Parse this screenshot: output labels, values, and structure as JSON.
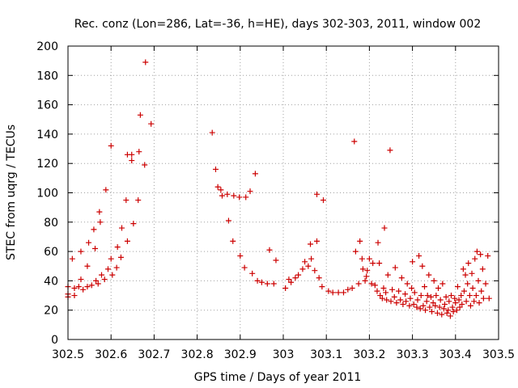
{
  "chart_data": {
    "type": "scatter",
    "title": "Rec. conz (Lon=286, Lat=-36, h=HE), days 302-303, 2011, window 002",
    "xlabel": "GPS time / Days of year 2011",
    "ylabel": "STEC from uqrg / TECUs",
    "xlim": [
      302.5,
      303.5
    ],
    "ylim": [
      0,
      200
    ],
    "xticks": [
      302.5,
      302.6,
      302.7,
      302.8,
      302.9,
      303.0,
      303.1,
      303.2,
      303.3,
      303.4,
      303.5
    ],
    "xtick_labels": [
      "302.5",
      "302.6",
      "302.7",
      "302.8",
      "302.9",
      "303",
      "303.1",
      "303.2",
      "303.3",
      "303.4",
      "303.5"
    ],
    "yticks": [
      0,
      20,
      40,
      60,
      80,
      100,
      120,
      140,
      160,
      180,
      200
    ],
    "ytick_labels": [
      "0",
      "20",
      "40",
      "60",
      "80",
      "100",
      "120",
      "140",
      "160",
      "180",
      "200"
    ],
    "grid": true,
    "marker": "plus",
    "color": "#cc0000",
    "points": [
      [
        302.5,
        29
      ],
      [
        302.5,
        31
      ],
      [
        302.5,
        36
      ],
      [
        302.51,
        55
      ],
      [
        302.515,
        30
      ],
      [
        302.515,
        35
      ],
      [
        302.525,
        36
      ],
      [
        302.53,
        41
      ],
      [
        302.53,
        60
      ],
      [
        302.535,
        34
      ],
      [
        302.545,
        36
      ],
      [
        302.545,
        50
      ],
      [
        302.548,
        66
      ],
      [
        302.555,
        37
      ],
      [
        302.56,
        75
      ],
      [
        302.563,
        62
      ],
      [
        302.565,
        40
      ],
      [
        302.57,
        38
      ],
      [
        302.573,
        87
      ],
      [
        302.575,
        80
      ],
      [
        302.578,
        44
      ],
      [
        302.585,
        41
      ],
      [
        302.588,
        102
      ],
      [
        302.593,
        48
      ],
      [
        302.6,
        55
      ],
      [
        302.6,
        132
      ],
      [
        302.603,
        44
      ],
      [
        302.613,
        49
      ],
      [
        302.615,
        63
      ],
      [
        302.623,
        56
      ],
      [
        302.625,
        76
      ],
      [
        302.635,
        95
      ],
      [
        302.638,
        67
      ],
      [
        302.638,
        126
      ],
      [
        302.648,
        126
      ],
      [
        302.648,
        122
      ],
      [
        302.652,
        79
      ],
      [
        302.663,
        95
      ],
      [
        302.665,
        128
      ],
      [
        302.668,
        153
      ],
      [
        302.678,
        119
      ],
      [
        302.68,
        189
      ],
      [
        302.693,
        147
      ],
      [
        302.835,
        141
      ],
      [
        302.843,
        116
      ],
      [
        302.848,
        104
      ],
      [
        302.855,
        102
      ],
      [
        302.858,
        98
      ],
      [
        302.87,
        99
      ],
      [
        302.873,
        81
      ],
      [
        302.883,
        67
      ],
      [
        302.885,
        98
      ],
      [
        302.898,
        97
      ],
      [
        302.9,
        57
      ],
      [
        302.91,
        49
      ],
      [
        302.913,
        97
      ],
      [
        302.923,
        101
      ],
      [
        302.928,
        45
      ],
      [
        302.935,
        113
      ],
      [
        302.94,
        40
      ],
      [
        302.95,
        39
      ],
      [
        302.963,
        38
      ],
      [
        302.968,
        61
      ],
      [
        302.978,
        38
      ],
      [
        302.983,
        54
      ],
      [
        303.005,
        35
      ],
      [
        303.013,
        41
      ],
      [
        303.018,
        39
      ],
      [
        303.028,
        42
      ],
      [
        303.035,
        44
      ],
      [
        303.045,
        48
      ],
      [
        303.05,
        53
      ],
      [
        303.058,
        50
      ],
      [
        303.063,
        65
      ],
      [
        303.065,
        55
      ],
      [
        303.073,
        47
      ],
      [
        303.078,
        67
      ],
      [
        303.078,
        99
      ],
      [
        303.083,
        42
      ],
      [
        303.09,
        36
      ],
      [
        303.093,
        95
      ],
      [
        303.105,
        33
      ],
      [
        303.115,
        32
      ],
      [
        303.128,
        32
      ],
      [
        303.14,
        32
      ],
      [
        303.15,
        34
      ],
      [
        303.16,
        35
      ],
      [
        303.165,
        135
      ],
      [
        303.168,
        60
      ],
      [
        303.175,
        38
      ],
      [
        303.178,
        67
      ],
      [
        303.183,
        55
      ],
      [
        303.185,
        48
      ],
      [
        303.19,
        40
      ],
      [
        303.193,
        43
      ],
      [
        303.195,
        47
      ],
      [
        303.2,
        55
      ],
      [
        303.205,
        38
      ],
      [
        303.208,
        52
      ],
      [
        303.213,
        37
      ],
      [
        303.218,
        33
      ],
      [
        303.22,
        66
      ],
      [
        303.223,
        52
      ],
      [
        303.225,
        30
      ],
      [
        303.23,
        28
      ],
      [
        303.233,
        35
      ],
      [
        303.235,
        76
      ],
      [
        303.238,
        32
      ],
      [
        303.24,
        27
      ],
      [
        303.243,
        44
      ],
      [
        303.248,
        129
      ],
      [
        303.25,
        26
      ],
      [
        303.253,
        34
      ],
      [
        303.258,
        29
      ],
      [
        303.26,
        49
      ],
      [
        303.263,
        25
      ],
      [
        303.268,
        33
      ],
      [
        303.272,
        27
      ],
      [
        303.275,
        42
      ],
      [
        303.278,
        24
      ],
      [
        303.283,
        31
      ],
      [
        303.285,
        26
      ],
      [
        303.288,
        38
      ],
      [
        303.293,
        23
      ],
      [
        303.295,
        28
      ],
      [
        303.298,
        35
      ],
      [
        303.3,
        53
      ],
      [
        303.303,
        24
      ],
      [
        303.305,
        32
      ],
      [
        303.31,
        22
      ],
      [
        303.312,
        27
      ],
      [
        303.315,
        57
      ],
      [
        303.318,
        21
      ],
      [
        303.32,
        30
      ],
      [
        303.323,
        50
      ],
      [
        303.325,
        23
      ],
      [
        303.328,
        36
      ],
      [
        303.33,
        20
      ],
      [
        303.333,
        26
      ],
      [
        303.335,
        30
      ],
      [
        303.338,
        44
      ],
      [
        303.34,
        22
      ],
      [
        303.343,
        29
      ],
      [
        303.345,
        19
      ],
      [
        303.348,
        25
      ],
      [
        303.35,
        40
      ],
      [
        303.353,
        23
      ],
      [
        303.355,
        30
      ],
      [
        303.358,
        18
      ],
      [
        303.36,
        35
      ],
      [
        303.363,
        22
      ],
      [
        303.365,
        27
      ],
      [
        303.368,
        17
      ],
      [
        303.37,
        38
      ],
      [
        303.373,
        21
      ],
      [
        303.375,
        24
      ],
      [
        303.378,
        29
      ],
      [
        303.38,
        18
      ],
      [
        303.383,
        20
      ],
      [
        303.385,
        26
      ],
      [
        303.388,
        16
      ],
      [
        303.39,
        30
      ],
      [
        303.393,
        22
      ],
      [
        303.395,
        19
      ],
      [
        303.398,
        28
      ],
      [
        303.4,
        25
      ],
      [
        303.403,
        20
      ],
      [
        303.405,
        36
      ],
      [
        303.408,
        27
      ],
      [
        303.41,
        22
      ],
      [
        303.413,
        30
      ],
      [
        303.415,
        24
      ],
      [
        303.418,
        48
      ],
      [
        303.42,
        33
      ],
      [
        303.423,
        44
      ],
      [
        303.425,
        26
      ],
      [
        303.428,
        38
      ],
      [
        303.43,
        52
      ],
      [
        303.433,
        30
      ],
      [
        303.435,
        23
      ],
      [
        303.438,
        45
      ],
      [
        303.44,
        35
      ],
      [
        303.443,
        26
      ],
      [
        303.445,
        55
      ],
      [
        303.448,
        30
      ],
      [
        303.45,
        60
      ],
      [
        303.453,
        40
      ],
      [
        303.455,
        25
      ],
      [
        303.458,
        58
      ],
      [
        303.46,
        33
      ],
      [
        303.463,
        48
      ],
      [
        303.465,
        28
      ],
      [
        303.47,
        38
      ],
      [
        303.475,
        57
      ],
      [
        303.478,
        28
      ]
    ]
  }
}
